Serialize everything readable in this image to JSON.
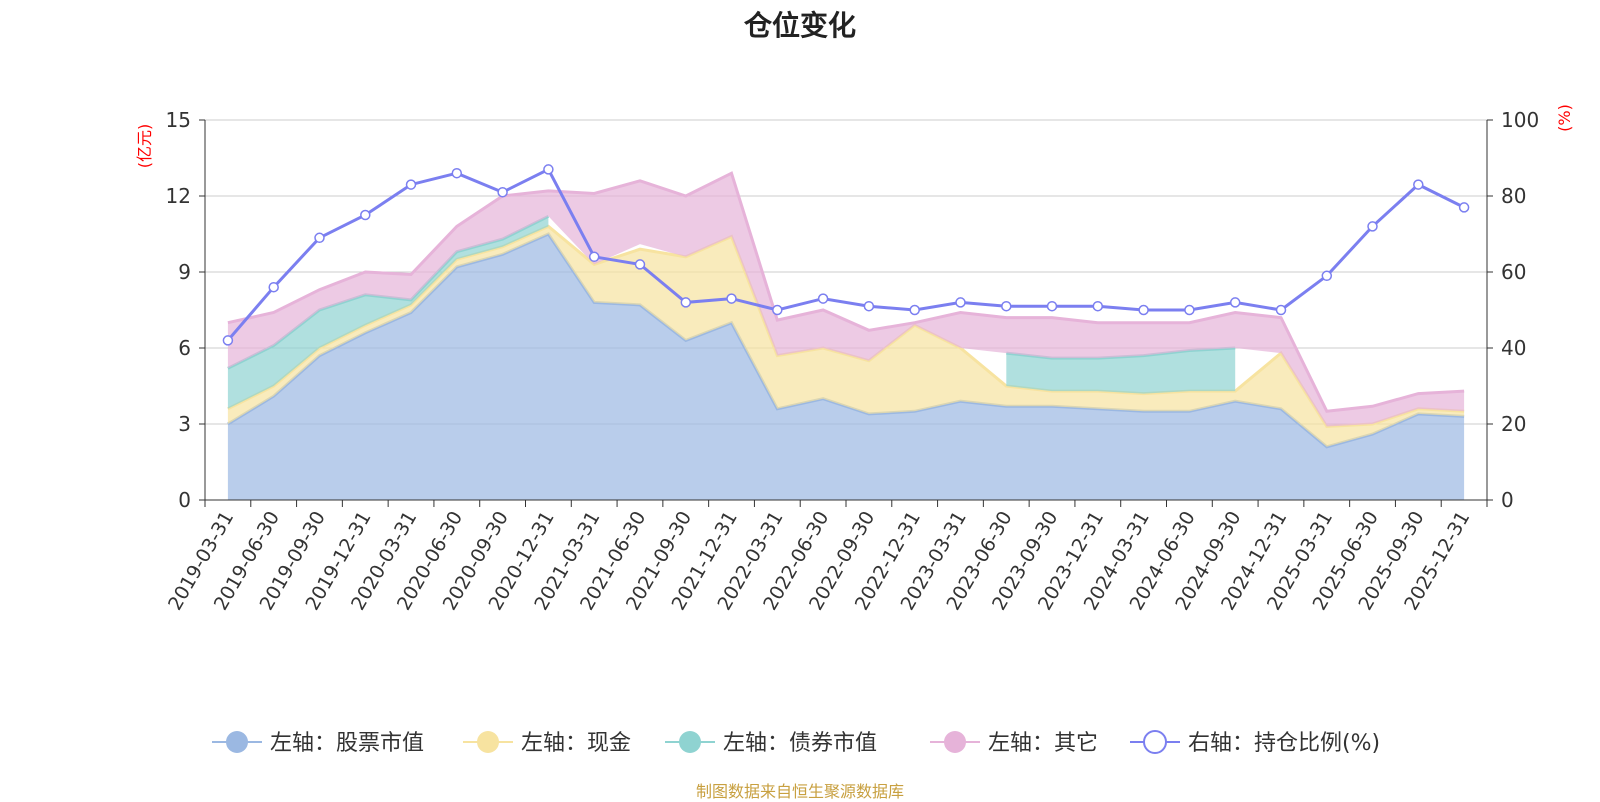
{
  "footer": {
    "source": "制图数据来自恒生聚源数据库"
  },
  "chart_data": {
    "type": "area",
    "title": "仓位变化",
    "left_axis": {
      "unit": "(亿元)",
      "min": 0,
      "max": 15,
      "ticks": [
        0,
        3,
        6,
        9,
        12,
        15
      ]
    },
    "right_axis": {
      "unit": "(%)",
      "min": 0,
      "max": 100,
      "ticks": [
        0,
        20,
        40,
        60,
        80,
        100
      ]
    },
    "grid": true,
    "legend_position": "bottom",
    "categories": [
      "2019-03-31",
      "2019-06-30",
      "2019-09-30",
      "2019-12-31",
      "2020-03-31",
      "2020-06-30",
      "2020-09-30",
      "2020-12-31",
      "2021-03-31",
      "2021-06-30",
      "2021-09-30",
      "2021-12-31",
      "2022-03-31",
      "2022-06-30",
      "2022-09-30",
      "2022-12-31",
      "2023-03-31",
      "2023-06-30",
      "2023-09-30",
      "2023-12-31",
      "2024-03-31",
      "2024-06-30",
      "2024-09-30",
      "2024-12-31",
      "2025-03-31",
      "2025-06-30",
      "2025-09-30",
      "2025-12-31"
    ],
    "series": [
      {
        "name": "左轴：股票市值",
        "axis": "left",
        "color": "#9bb8e2",
        "values": [
          3.0,
          4.1,
          5.7,
          6.6,
          7.4,
          9.2,
          9.7,
          10.5,
          7.8,
          7.7,
          6.3,
          7.0,
          3.6,
          4.0,
          3.4,
          3.5,
          3.9,
          3.7,
          3.7,
          3.6,
          3.5,
          3.5,
          3.9,
          3.6,
          2.1,
          2.6,
          3.4,
          3.3
        ]
      },
      {
        "name": "左轴：现金",
        "axis": "left",
        "color": "#f7e3a0",
        "values": [
          0.6,
          0.4,
          0.3,
          0.3,
          0.3,
          0.3,
          0.3,
          0.3,
          1.5,
          2.2,
          3.3,
          3.4,
          2.1,
          2.0,
          2.1,
          3.4,
          2.1,
          0.8,
          0.6,
          0.7,
          0.7,
          0.8,
          0.4,
          2.2,
          0.8,
          0.4,
          0.2,
          0.2
        ]
      },
      {
        "name": "左轴：债券市值",
        "axis": "left",
        "color": "#8fd3d1",
        "values": [
          1.6,
          1.6,
          1.5,
          1.2,
          0.2,
          0.3,
          0.3,
          0.4,
          0.0,
          0.2,
          0.0,
          0.0,
          0.0,
          0.0,
          0.0,
          0.0,
          0.0,
          1.3,
          1.3,
          1.3,
          1.5,
          1.6,
          1.7,
          0.0,
          0.0,
          0.0,
          0.0,
          0.0
        ]
      },
      {
        "name": "左轴：其它",
        "axis": "left",
        "color": "#e6b3d9",
        "values": [
          1.8,
          1.3,
          0.8,
          0.9,
          1.0,
          1.0,
          1.7,
          1.0,
          2.8,
          2.5,
          2.4,
          2.5,
          1.4,
          1.5,
          1.2,
          0.1,
          1.4,
          1.4,
          1.6,
          1.4,
          1.3,
          1.1,
          1.4,
          1.4,
          0.6,
          0.7,
          0.6,
          0.8
        ]
      },
      {
        "name": "右轴：持仓比例(%)",
        "axis": "right",
        "color": "#7b7ff0",
        "type": "line",
        "values": [
          42,
          56,
          69,
          75,
          83,
          86,
          81,
          87,
          64,
          62,
          52,
          53,
          50,
          53,
          51,
          50,
          52,
          51,
          51,
          51,
          50,
          50,
          52,
          50,
          59,
          72,
          83,
          77
        ]
      }
    ]
  }
}
